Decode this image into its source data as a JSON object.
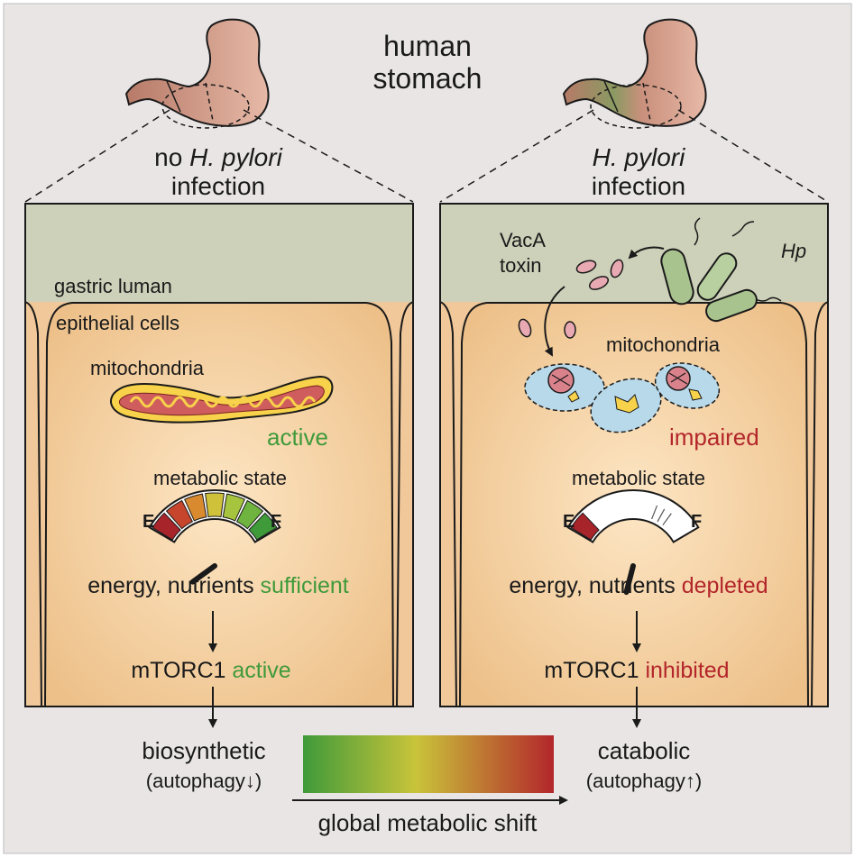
{
  "title": {
    "line1": "human",
    "line2": "stomach"
  },
  "left_panel": {
    "heading_prefix": "no ",
    "heading_italic": "H. pylori",
    "heading_line2": "infection",
    "gastric_label": "gastric luman",
    "epithelial_label": "epithelial cells",
    "mito_label": "mitochondria",
    "mito_status": "active",
    "metabolic_label": "metabolic state",
    "gauge_e": "E",
    "gauge_f": "F",
    "gauge_fill_fraction": 1.0,
    "energy_label": "energy, nutrients ",
    "energy_status": "sufficient",
    "mtorc_label": "mTORC1 ",
    "mtorc_status": "active"
  },
  "right_panel": {
    "heading_italic": "H. pylori",
    "heading_line2": "infection",
    "toxin_line1": "VacA",
    "toxin_line2": "toxin",
    "hp_label": "Hp",
    "mito_label": "mitochondria",
    "mito_status": "impaired",
    "metabolic_label": "metabolic state",
    "gauge_e": "E",
    "gauge_f": "F",
    "gauge_fill_fraction": 0.14,
    "energy_label": "energy, nutrients ",
    "energy_status": "depleted",
    "mtorc_label": "mTORC1 ",
    "mtorc_status": "inhibited"
  },
  "bottom": {
    "left_label": "biosynthetic",
    "left_sub": "(autophagy",
    "left_arrow": "↓",
    "right_label": "catabolic",
    "right_sub": "(autophagy",
    "right_arrow": "↑",
    "close_paren": ")",
    "shift_label": "global metabolic shift"
  },
  "colors": {
    "background": "#e9e5e5",
    "lumen": "#cdd1b9",
    "cell": "#f3cf9f",
    "active": "#3f9a3a",
    "impaired": "#b3262b",
    "gradient": [
      "#3f9a3a",
      "#c9c43a",
      "#b3262b"
    ]
  }
}
